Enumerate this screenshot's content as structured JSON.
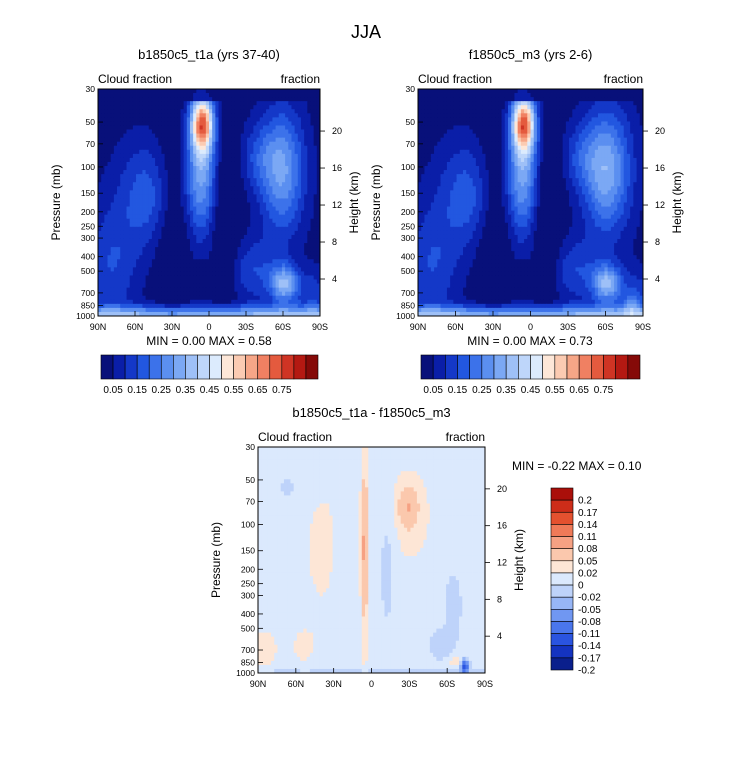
{
  "page_title": "JJA",
  "colors": {
    "positive_palette": [
      "#08107a",
      "#0a1ea8",
      "#1438c8",
      "#2257e0",
      "#3c72ea",
      "#5b8ff0",
      "#7ba8f4",
      "#9ec0f7",
      "#bed6fa",
      "#dcebfd",
      "#fde7d8",
      "#fbcbb2",
      "#f6a687",
      "#f08062",
      "#e45a3e",
      "#cf3424",
      "#b41912",
      "#850a08"
    ],
    "diff_palette": [
      "#0a1f8c",
      "#1433c0",
      "#2a54e0",
      "#4a76ec",
      "#7097f2",
      "#97b6f6",
      "#bed3fa",
      "#dbe9fd",
      "#fde6d6",
      "#fbc8ad",
      "#f6a183",
      "#ef7a58",
      "#e4512f",
      "#cd2d19",
      "#aa0f0a"
    ]
  },
  "chart_data": [
    {
      "type": "heatmap",
      "name": "panel-left",
      "title": "b1850c5_t1a (yrs 37-40)",
      "left_label": "Cloud fraction",
      "right_label": "fraction",
      "ylabel": "Pressure (mb)",
      "ylabel_right": "Height (km)",
      "x_tick_labels": [
        "90N",
        "60N",
        "30N",
        "0",
        "30S",
        "60S",
        "90S"
      ],
      "y_tick_labels": [
        "30",
        "50",
        "70",
        "100",
        "150",
        "200",
        "250",
        "300",
        "400",
        "500",
        "700",
        "850",
        "1000"
      ],
      "height_tick_labels": [
        "20",
        "16",
        "12",
        "8",
        "4"
      ],
      "min_max_text": "MIN =   0.00   MAX =   0.58",
      "colorbar_labels": [
        "0.05",
        "0.15",
        "0.25",
        "0.35",
        "0.45",
        "0.55",
        "0.65",
        "0.75"
      ],
      "field_max": 0.58
    },
    {
      "type": "heatmap",
      "name": "panel-right",
      "title": "f1850c5_m3 (yrs 2-6)",
      "left_label": "Cloud fraction",
      "right_label": "fraction",
      "ylabel": "Pressure (mb)",
      "ylabel_right": "Height (km)",
      "x_tick_labels": [
        "90N",
        "60N",
        "30N",
        "0",
        "30S",
        "60S",
        "90S"
      ],
      "y_tick_labels": [
        "30",
        "50",
        "70",
        "100",
        "150",
        "200",
        "250",
        "300",
        "400",
        "500",
        "700",
        "850",
        "1000"
      ],
      "height_tick_labels": [
        "20",
        "16",
        "12",
        "8",
        "4"
      ],
      "min_max_text": "MIN =   0.00   MAX =   0.73",
      "colorbar_labels": [
        "0.05",
        "0.15",
        "0.25",
        "0.35",
        "0.45",
        "0.55",
        "0.65",
        "0.75"
      ],
      "field_max": 0.73
    },
    {
      "type": "heatmap",
      "name": "panel-diff",
      "title": "b1850c5_t1a - f1850c5_m3",
      "left_label": "Cloud fraction",
      "right_label": "fraction",
      "ylabel": "Pressure (mb)",
      "ylabel_right": "Height (km)",
      "x_tick_labels": [
        "90N",
        "60N",
        "30N",
        "0",
        "30S",
        "60S",
        "90S"
      ],
      "y_tick_labels": [
        "30",
        "50",
        "70",
        "100",
        "150",
        "200",
        "250",
        "300",
        "400",
        "500",
        "700",
        "850",
        "1000"
      ],
      "height_tick_labels": [
        "20",
        "16",
        "12",
        "8",
        "4"
      ],
      "min_max_text": "MIN =  -0.22   MAX =   0.10",
      "colorbar_labels": [
        "0.2",
        "0.17",
        "0.14",
        "0.11",
        "0.08",
        "0.05",
        "0.02",
        "0",
        "-0.02",
        "-0.05",
        "-0.08",
        "-0.11",
        "-0.14",
        "-0.17",
        "-0.2"
      ]
    }
  ]
}
